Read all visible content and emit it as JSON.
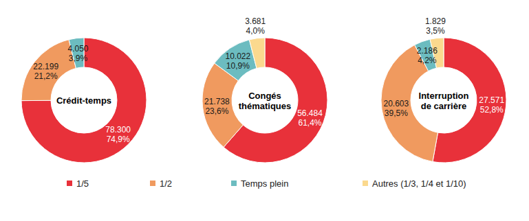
{
  "chart_data": [
    {
      "type": "pie",
      "title": "Crédit-temps",
      "categories": [
        "1/5",
        "1/2",
        "Temps plein"
      ],
      "values": [
        78300,
        22199,
        4050
      ],
      "value_labels": [
        "78.300",
        "22.199",
        "4.050"
      ],
      "percentages": [
        74.9,
        21.2,
        3.9
      ],
      "percentage_labels": [
        "74,9%",
        "21,2%",
        "3,9%"
      ],
      "colors": [
        "#e8313a",
        "#f09a5f",
        "#6cbcc0"
      ],
      "data_labels": true
    },
    {
      "type": "pie",
      "title": "Congés thématiques",
      "categories": [
        "1/5",
        "1/2",
        "Temps plein",
        "Autres (1/3, 1/4 et 1/10)"
      ],
      "values": [
        56484,
        21738,
        10022,
        3681
      ],
      "value_labels": [
        "56.484",
        "21.738",
        "10.022",
        "3.681"
      ],
      "percentages": [
        61.4,
        23.6,
        10.9,
        4.0
      ],
      "percentage_labels": [
        "61,4%",
        "23,6%",
        "10,9%",
        "4,0%"
      ],
      "colors": [
        "#e8313a",
        "#f09a5f",
        "#6cbcc0",
        "#fbd98e"
      ],
      "data_labels": true,
      "legend": "bottom"
    },
    {
      "type": "pie",
      "title": "Interruption de carrière",
      "categories": [
        "1/5",
        "1/2",
        "Temps plein",
        "Autres (1/3, 1/4 et 1/10)"
      ],
      "values": [
        27571,
        20603,
        2186,
        1829
      ],
      "value_labels": [
        "27.571",
        "20.603",
        "2.186",
        "1.829"
      ],
      "percentages": [
        52.8,
        39.5,
        4.2,
        3.5
      ],
      "percentage_labels": [
        "52,8%",
        "39,5%",
        "4,2%",
        "3,5%"
      ],
      "colors": [
        "#e8313a",
        "#f09a5f",
        "#6cbcc0",
        "#fbd98e"
      ],
      "data_labels": true
    }
  ]
}
